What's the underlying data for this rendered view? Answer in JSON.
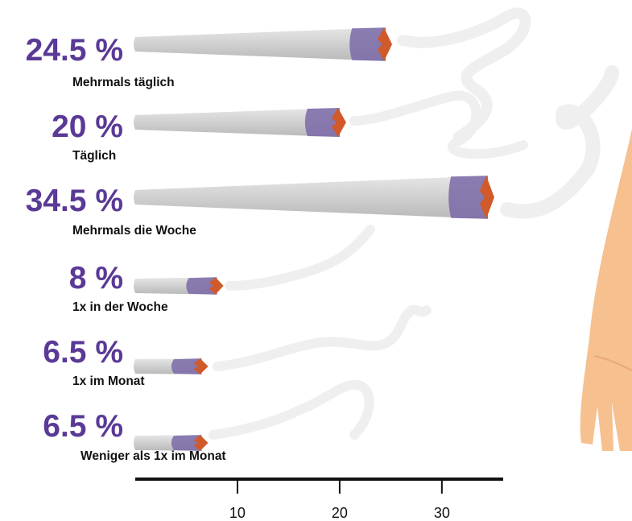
{
  "chart_data": {
    "type": "bar",
    "categories": [
      "Mehrmals täglich",
      "Täglich",
      "Mehrmals die Woche",
      "1x in der Woche",
      "1x im Monat",
      "Weniger als 1x im Monat"
    ],
    "value_labels": [
      "24.5 %",
      "20 %",
      "34.5 %",
      "8 %",
      "6.5 %",
      "6.5 %"
    ],
    "values": [
      24.5,
      20,
      34.5,
      8,
      6.5,
      6.5
    ],
    "orientation": "horizontal",
    "xlim": [
      0,
      36
    ],
    "xticks": [
      10,
      20,
      30
    ],
    "grid": false,
    "colors": {
      "value": "#5a3a96",
      "paper": "#cfcfcf",
      "ash": "#7a68a8",
      "ember": "#d05a2a",
      "smoke": "#efefef",
      "hand": "#f7c08f"
    }
  }
}
